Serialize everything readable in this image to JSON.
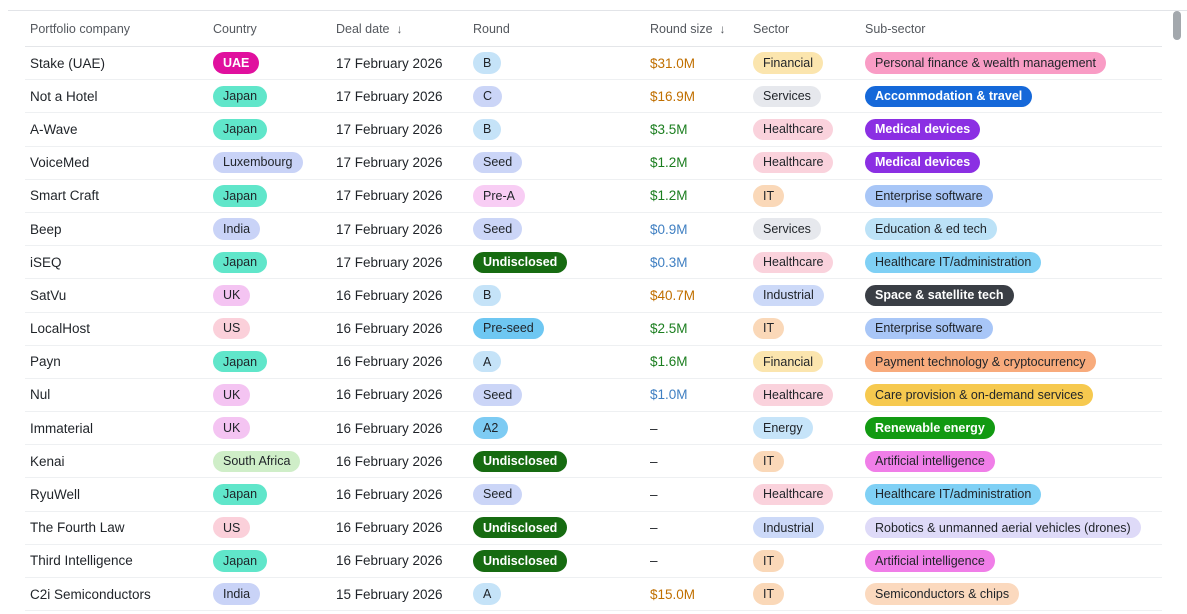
{
  "header": {
    "columns": [
      {
        "label": "Portfolio company",
        "sort": null
      },
      {
        "label": "Country",
        "sort": null
      },
      {
        "label": "Deal date",
        "sort": "desc"
      },
      {
        "label": "Round",
        "sort": null
      },
      {
        "label": "Round size",
        "sort": "desc"
      },
      {
        "label": "Sector",
        "sort": null
      },
      {
        "label": "Sub-sector",
        "sort": null
      }
    ],
    "sort_icon": "↓"
  },
  "rows": [
    {
      "company": "Stake (UAE)",
      "country": "UAE",
      "deal_date": "17 February 2026",
      "round": "B",
      "round_size": "$31.0M",
      "round_size_color": "orange",
      "sector": "Financial",
      "sub_sector": "Personal finance & wealth management"
    },
    {
      "company": "Not a Hotel",
      "country": "Japan",
      "deal_date": "17 February 2026",
      "round": "C",
      "round_size": "$16.9M",
      "round_size_color": "orange",
      "sector": "Services",
      "sub_sector": "Accommodation & travel"
    },
    {
      "company": "A-Wave",
      "country": "Japan",
      "deal_date": "17 February 2026",
      "round": "B",
      "round_size": "$3.5M",
      "round_size_color": "green",
      "sector": "Healthcare",
      "sub_sector": "Medical devices"
    },
    {
      "company": "VoiceMed",
      "country": "Luxembourg",
      "deal_date": "17 February 2026",
      "round": "Seed",
      "round_size": "$1.2M",
      "round_size_color": "green",
      "sector": "Healthcare",
      "sub_sector": "Medical devices"
    },
    {
      "company": "Smart Craft",
      "country": "Japan",
      "deal_date": "17 February 2026",
      "round": "Pre-A",
      "round_size": "$1.2M",
      "round_size_color": "green",
      "sector": "IT",
      "sub_sector": "Enterprise software"
    },
    {
      "company": "Beep",
      "country": "India",
      "deal_date": "17 February 2026",
      "round": "Seed",
      "round_size": "$0.9M",
      "round_size_color": "blue",
      "sector": "Services",
      "sub_sector": "Education & ed tech"
    },
    {
      "company": "iSEQ",
      "country": "Japan",
      "deal_date": "17 February 2026",
      "round": "Undisclosed",
      "round_size": "$0.3M",
      "round_size_color": "blue",
      "sector": "Healthcare",
      "sub_sector": "Healthcare IT/administration"
    },
    {
      "company": "SatVu",
      "country": "UK",
      "deal_date": "16 February 2026",
      "round": "B",
      "round_size": "$40.7M",
      "round_size_color": "orange",
      "sector": "Industrial",
      "sub_sector": "Space & satellite tech"
    },
    {
      "company": "LocalHost",
      "country": "US",
      "deal_date": "16 February 2026",
      "round": "Pre-seed",
      "round_size": "$2.5M",
      "round_size_color": "green",
      "sector": "IT",
      "sub_sector": "Enterprise software"
    },
    {
      "company": "Payn",
      "country": "Japan",
      "deal_date": "16 February 2026",
      "round": "A",
      "round_size": "$1.6M",
      "round_size_color": "green",
      "sector": "Financial",
      "sub_sector": "Payment technology & cryptocurrency"
    },
    {
      "company": "Nul",
      "country": "UK",
      "deal_date": "16 February 2026",
      "round": "Seed",
      "round_size": "$1.0M",
      "round_size_color": "blue",
      "sector": "Healthcare",
      "sub_sector": "Care provision & on-demand services"
    },
    {
      "company": "Immaterial",
      "country": "UK",
      "deal_date": "16 February 2026",
      "round": "A2",
      "round_size": "–",
      "round_size_color": "plain",
      "sector": "Energy",
      "sub_sector": "Renewable energy"
    },
    {
      "company": "Kenai",
      "country": "South Africa",
      "deal_date": "16 February 2026",
      "round": "Undisclosed",
      "round_size": "–",
      "round_size_color": "plain",
      "sector": "IT",
      "sub_sector": "Artificial intelligence"
    },
    {
      "company": "RyuWell",
      "country": "Japan",
      "deal_date": "16 February 2026",
      "round": "Seed",
      "round_size": "–",
      "round_size_color": "plain",
      "sector": "Healthcare",
      "sub_sector": "Healthcare IT/administration"
    },
    {
      "company": "The Fourth Law",
      "country": "US",
      "deal_date": "16 February 2026",
      "round": "Undisclosed",
      "round_size": "–",
      "round_size_color": "plain",
      "sector": "Industrial",
      "sub_sector": "Robotics & unmanned aerial vehicles (drones)"
    },
    {
      "company": "Third Intelligence",
      "country": "Japan",
      "deal_date": "16 February 2026",
      "round": "Undisclosed",
      "round_size": "–",
      "round_size_color": "plain",
      "sector": "IT",
      "sub_sector": "Artificial intelligence"
    },
    {
      "company": "C2i Semiconductors",
      "country": "India",
      "deal_date": "15 February 2026",
      "round": "A",
      "round_size": "$15.0M",
      "round_size_color": "orange",
      "sector": "IT",
      "sub_sector": "Semiconductors & chips"
    }
  ],
  "badge_colors": {
    "country": {
      "UAE": {
        "bg": "#e0109e",
        "fg": "#ffffff",
        "bold": true
      },
      "Japan": {
        "bg": "#60e6ca",
        "fg": "#1f2328"
      },
      "Luxembourg": {
        "bg": "#c9d3f7",
        "fg": "#1f2328"
      },
      "India": {
        "bg": "#c9d3f7",
        "fg": "#1f2328"
      },
      "UK": {
        "bg": "#f4c4f2",
        "fg": "#1f2328"
      },
      "US": {
        "bg": "#fbd0da",
        "fg": "#1f2328"
      },
      "South Africa": {
        "bg": "#cfeec8",
        "fg": "#1f2328"
      }
    },
    "round": {
      "B": {
        "bg": "#c5e3f8",
        "fg": "#1f2328"
      },
      "C": {
        "bg": "#cbd5f7",
        "fg": "#1f2328"
      },
      "Seed": {
        "bg": "#cbd5f7",
        "fg": "#1f2328"
      },
      "Pre-A": {
        "bg": "#f8cdf4",
        "fg": "#1f2328"
      },
      "Undisclosed": {
        "bg": "#166b11",
        "fg": "#ffffff",
        "bold": true
      },
      "Pre-seed": {
        "bg": "#6ec7f2",
        "fg": "#1f2328"
      },
      "A": {
        "bg": "#c5e3f8",
        "fg": "#1f2328"
      },
      "A2": {
        "bg": "#7dcbf3",
        "fg": "#1f2328"
      }
    },
    "sector": {
      "Financial": {
        "bg": "#fbe5ae",
        "fg": "#1f2328"
      },
      "Services": {
        "bg": "#e6e8ed",
        "fg": "#1f2328"
      },
      "Healthcare": {
        "bg": "#fad2dc",
        "fg": "#1f2328"
      },
      "IT": {
        "bg": "#fad8b8",
        "fg": "#1f2328"
      },
      "Industrial": {
        "bg": "#ccd9f8",
        "fg": "#1f2328"
      },
      "Energy": {
        "bg": "#c6e4f9",
        "fg": "#1f2328"
      }
    },
    "sub_sector": {
      "Personal finance & wealth management": {
        "bg": "#f99cc5",
        "fg": "#1f2328"
      },
      "Accommodation & travel": {
        "bg": "#1568d9",
        "fg": "#ffffff",
        "bold": true
      },
      "Medical devices": {
        "bg": "#8b2fe3",
        "fg": "#ffffff",
        "bold": true
      },
      "Enterprise software": {
        "bg": "#a8c6f7",
        "fg": "#1f2328"
      },
      "Education & ed tech": {
        "bg": "#bce2f7",
        "fg": "#1f2328"
      },
      "Healthcare IT/administration": {
        "bg": "#7fd0f5",
        "fg": "#1f2328"
      },
      "Space & satellite tech": {
        "bg": "#3a3e45",
        "fg": "#ffffff",
        "bold": true
      },
      "Payment technology & cryptocurrency": {
        "bg": "#f8ab7c",
        "fg": "#1f2328"
      },
      "Care provision & on-demand services": {
        "bg": "#f6c94f",
        "fg": "#1f2328"
      },
      "Renewable energy": {
        "bg": "#129a12",
        "fg": "#ffffff",
        "bold": true
      },
      "Artificial intelligence": {
        "bg": "#f07ee8",
        "fg": "#1f2328"
      },
      "Robotics & unmanned aerial vehicles (drones)": {
        "bg": "#dedaf8",
        "fg": "#1f2328"
      },
      "Semiconductors & chips": {
        "bg": "#fbd9be",
        "fg": "#1f2328"
      }
    }
  },
  "round_size_colors": {
    "orange": "#c06f00",
    "green": "#1b7e1f",
    "blue": "#3f7fc2",
    "plain": "#23272b"
  }
}
